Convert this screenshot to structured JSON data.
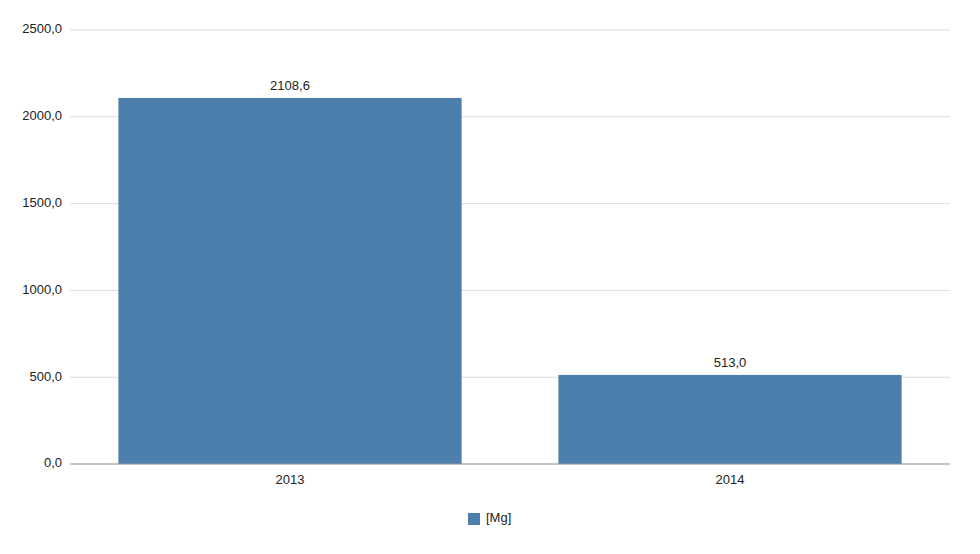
{
  "chart_data": {
    "type": "bar",
    "categories": [
      "2013",
      "2014"
    ],
    "series": [
      {
        "name": "[Mg]",
        "color": "#4d7fac",
        "values": [
          2108.6,
          513.0
        ],
        "value_labels": [
          "2108,6",
          "513,0"
        ]
      }
    ],
    "ylim": [
      0,
      2500
    ],
    "yticks": [
      {
        "value": 0,
        "label": "0,0"
      },
      {
        "value": 500,
        "label": "500,0"
      },
      {
        "value": 1000,
        "label": "1000,0"
      },
      {
        "value": 1500,
        "label": "1500,0"
      },
      {
        "value": 2000,
        "label": "2000,0"
      },
      {
        "value": 2500,
        "label": "2500,0"
      }
    ],
    "grid": true,
    "data_labels": true,
    "legend": "bottom"
  }
}
